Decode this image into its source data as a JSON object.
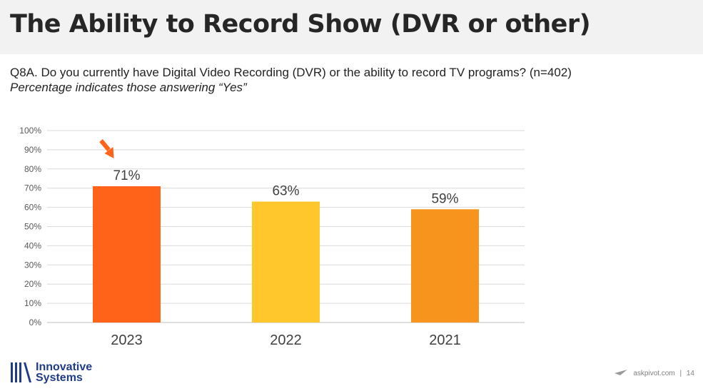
{
  "slide": {
    "title": "The Ability to Record Show (DVR or other)",
    "question": "Q8A. Do you currently have Digital Video Recording (DVR) or the ability to record TV programs? (n=402)",
    "note": "Percentage indicates those answering “Yes”"
  },
  "footer": {
    "logo_line1": "Innovative",
    "logo_line2": "Systems",
    "site": "askpivot.com",
    "separator": "|",
    "page_number": "14"
  },
  "colors": {
    "bar_2023": "#ff6319",
    "bar_2022": "#ffc72c",
    "bar_2021": "#f7941d",
    "arrow": "#ff6319",
    "logo": "#1f3c88"
  },
  "chart_data": {
    "type": "bar",
    "categories": [
      "2023",
      "2022",
      "2021"
    ],
    "values": [
      71,
      63,
      59
    ],
    "data_labels": [
      "71%",
      "63%",
      "59%"
    ],
    "ylim": [
      0,
      100
    ],
    "yticks": [
      "0%",
      "10%",
      "20%",
      "30%",
      "40%",
      "50%",
      "60%",
      "70%",
      "80%",
      "90%",
      "100%"
    ],
    "grid": true,
    "highlight": "2023",
    "title": "",
    "xlabel": "",
    "ylabel": ""
  }
}
